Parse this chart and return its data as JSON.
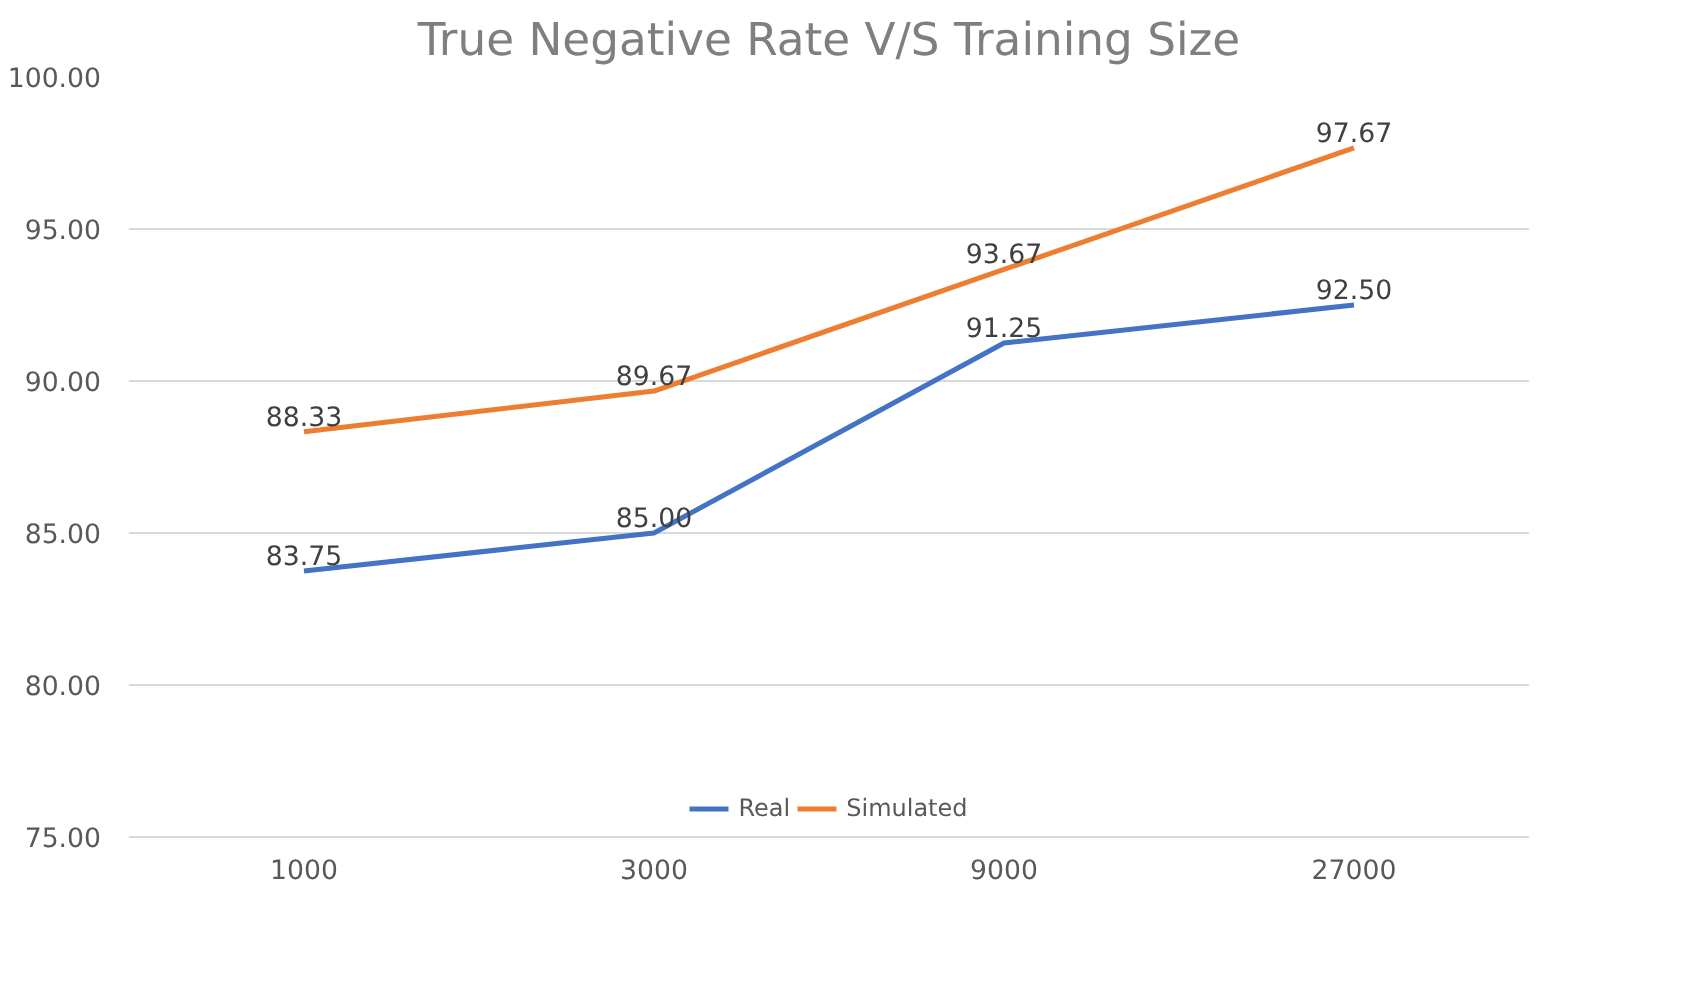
{
  "chart_data": {
    "type": "line",
    "title": "True Negative Rate V/S Training Size",
    "categories": [
      "1000",
      "3000",
      "9000",
      "27000"
    ],
    "series": [
      {
        "name": "Real",
        "color": "#4472c4",
        "values": [
          83.75,
          85.0,
          91.25,
          92.5
        ],
        "value_labels": [
          "83.75",
          "85.00",
          "91.25",
          "92.50"
        ]
      },
      {
        "name": "Simulated",
        "color": "#ed7d31",
        "values": [
          88.33,
          89.67,
          93.67,
          97.67
        ],
        "value_labels": [
          "88.33",
          "89.67",
          "93.67",
          "97.67"
        ]
      }
    ],
    "ylim": [
      75,
      100
    ],
    "yticks": [
      {
        "value": 75,
        "label": "75.00"
      },
      {
        "value": 80,
        "label": "80.00"
      },
      {
        "value": 85,
        "label": "85.00"
      },
      {
        "value": 90,
        "label": "90.00"
      },
      {
        "value": 95,
        "label": "95.00"
      },
      {
        "value": 100,
        "label": "100.00"
      }
    ],
    "grid": "y",
    "legend": "bottom",
    "marker": "none",
    "line_style": "solid"
  }
}
